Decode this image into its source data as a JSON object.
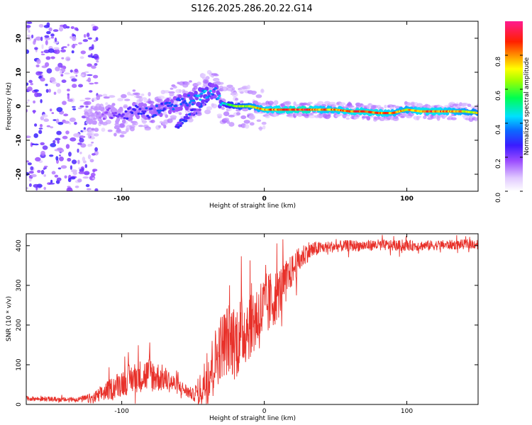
{
  "title": "S126.2025.286.20.22.G14",
  "chart_data": [
    {
      "type": "heatmap",
      "name": "spectrogram",
      "xlabel": "Height of straight line (km)",
      "ylabel": "Frequency (Hz)",
      "xlim": [
        -167,
        150
      ],
      "ylim": [
        -25,
        25
      ],
      "xticks": [
        -100,
        0,
        100
      ],
      "yticks": [
        -20,
        -10,
        0,
        10,
        20
      ],
      "colorbar": {
        "label": "Normalized spectral amplitude",
        "range": [
          0,
          1
        ],
        "ticks": [
          0.0,
          0.2,
          0.4,
          0.6,
          0.8
        ],
        "tick_labels": [
          "0.0",
          "0.2",
          "0.4",
          "0.6",
          "0.8"
        ]
      },
      "ridge": {
        "x": [
          -120,
          -110,
          -100,
          -90,
          -80,
          -70,
          -60,
          -50,
          -40,
          -35,
          -30,
          -20,
          -10,
          0,
          10,
          20,
          30,
          40,
          50,
          60,
          70,
          80,
          90,
          100,
          110,
          120,
          130,
          140,
          150
        ],
        "freq": [
          -3,
          -2,
          -3,
          -1,
          -2,
          0,
          1,
          2,
          4,
          5,
          1,
          0,
          0,
          -1,
          -1,
          -1,
          -1,
          -1,
          -1,
          -1.5,
          -1.5,
          -2,
          -2,
          -1,
          -1.5,
          -1.5,
          -1.5,
          -1.5,
          -2
        ],
        "amplitude": [
          0.12,
          0.2,
          0.25,
          0.3,
          0.3,
          0.35,
          0.35,
          0.4,
          0.45,
          0.35,
          0.45,
          0.65,
          0.75,
          0.85,
          0.9,
          0.92,
          0.95,
          0.85,
          0.85,
          0.9,
          0.9,
          0.9,
          0.85,
          0.8,
          0.9,
          0.9,
          0.85,
          0.8,
          0.75
        ]
      }
    },
    {
      "type": "line",
      "name": "snr",
      "xlabel": "Height of straight line (km)",
      "ylabel": "SNR (10 * v/v)",
      "xlim": [
        -167,
        150
      ],
      "ylim": [
        0,
        430
      ],
      "xticks": [
        -100,
        0,
        100
      ],
      "yticks": [
        0,
        100,
        200,
        300,
        400
      ],
      "color": "#e8312a",
      "envelope": {
        "x": [
          -167,
          -140,
          -120,
          -110,
          -100,
          -90,
          -80,
          -70,
          -60,
          -50,
          -45,
          -40,
          -35,
          -30,
          -25,
          -20,
          -15,
          -10,
          -5,
          0,
          5,
          10,
          15,
          20,
          25,
          30,
          40,
          50,
          60,
          70,
          80,
          90,
          100,
          110,
          120,
          130,
          140,
          150
        ],
        "y": [
          15,
          12,
          15,
          35,
          55,
          70,
          75,
          65,
          45,
          25,
          35,
          70,
          110,
          150,
          165,
          160,
          185,
          210,
          220,
          240,
          260,
          280,
          310,
          340,
          365,
          385,
          395,
          398,
          400,
          400,
          402,
          400,
          400,
          400,
          401,
          402,
          403,
          405
        ]
      },
      "noise": {
        "x": [
          -167,
          -130,
          -120,
          -100,
          -80,
          -60,
          -50,
          -40,
          -20,
          0,
          20,
          40,
          150
        ],
        "amplitude": [
          6,
          6,
          15,
          35,
          45,
          20,
          15,
          70,
          100,
          90,
          40,
          15,
          12
        ]
      }
    }
  ]
}
